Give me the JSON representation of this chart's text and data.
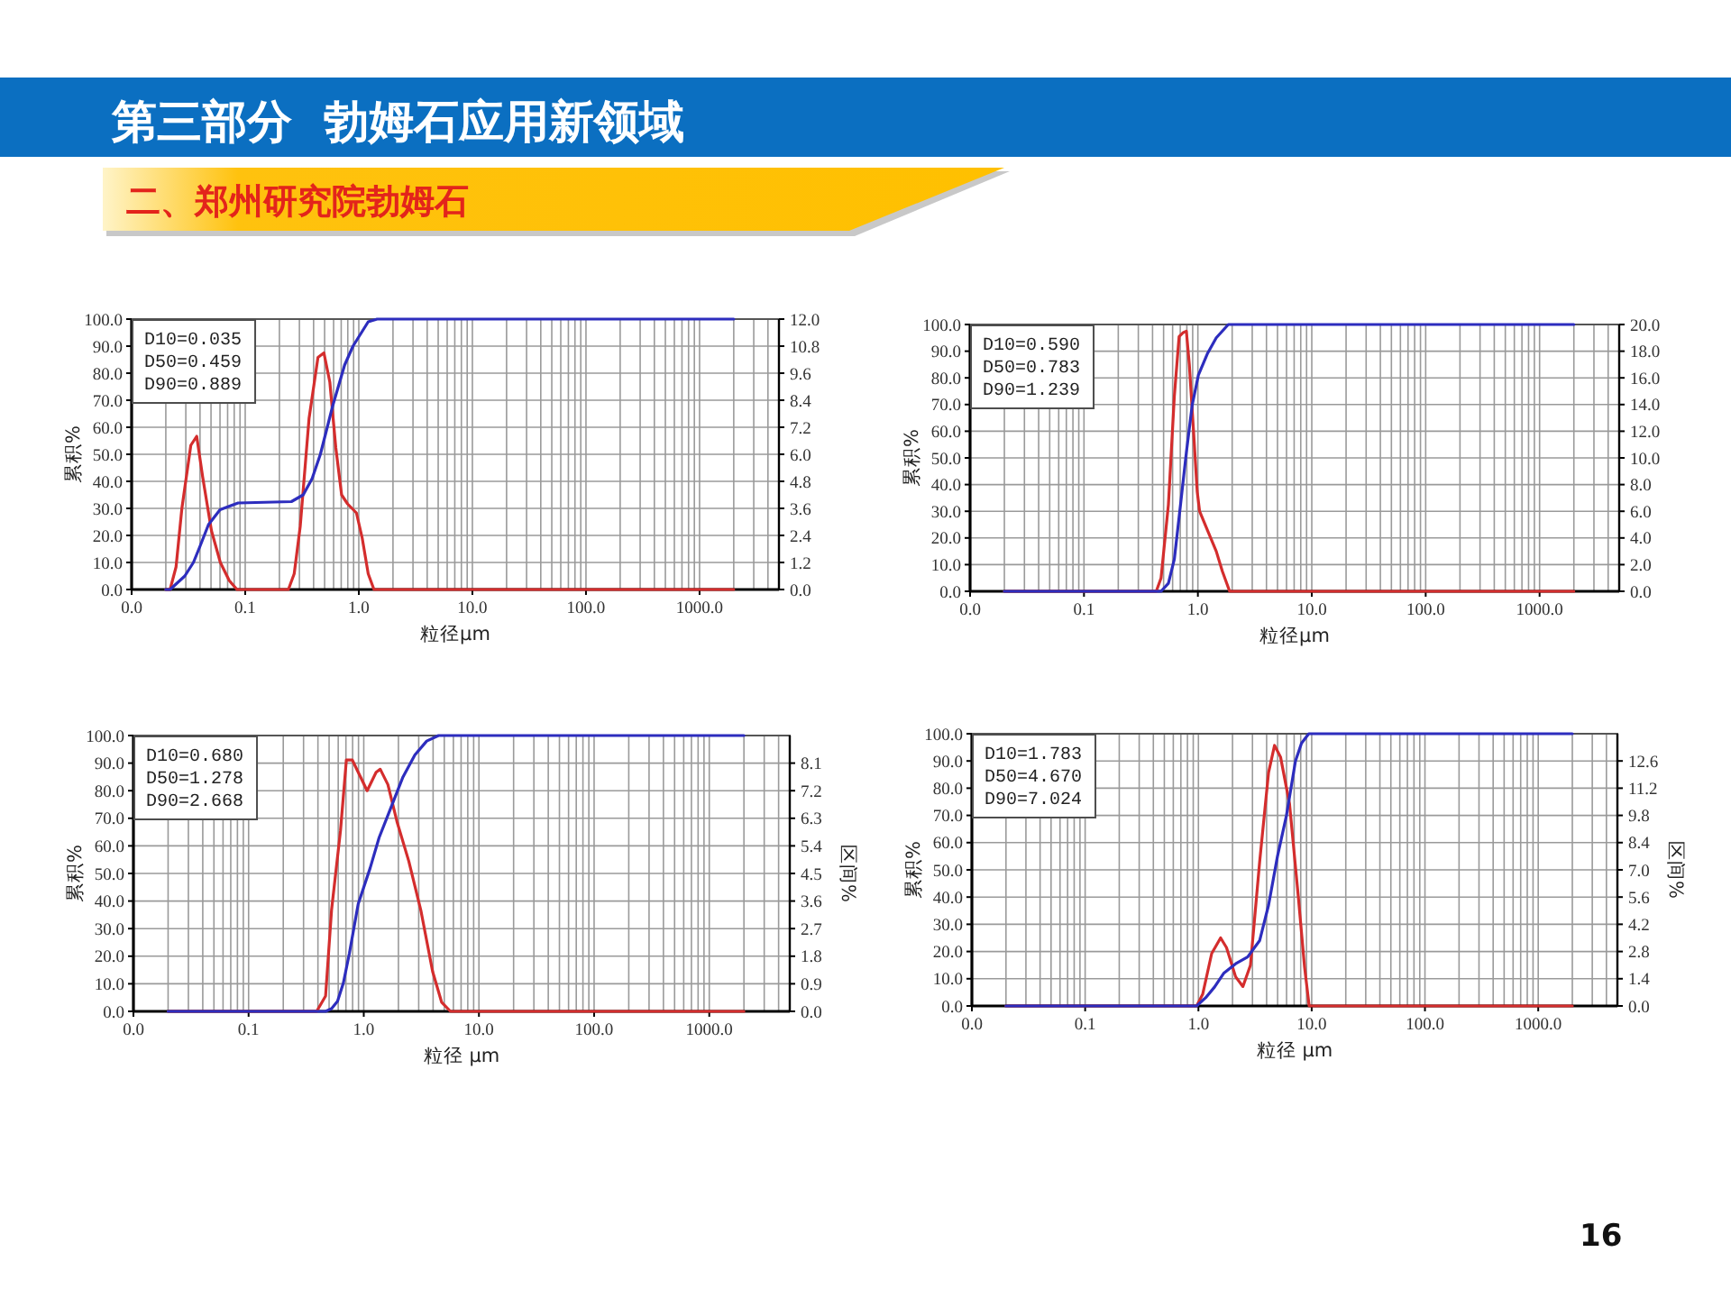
{
  "chart_data": [
    {
      "type": "other",
      "title": "第三部分  勃姆石应用新领域",
      "subtitle": "二、郑州研究院勃姆石",
      "annotations": [
        "16"
      ]
    },
    {
      "type": "line",
      "log": "x",
      "grid": true,
      "xlabel": "粒径μm",
      "ylabel": "累积%",
      "xlim": [
        0.01,
        5000
      ],
      "xticks": [
        {
          "value": 0.01,
          "label": "0.0"
        },
        {
          "value": 0.1,
          "label": "0.1"
        },
        {
          "value": 1,
          "label": "1.0"
        },
        {
          "value": 10,
          "label": "10.0"
        },
        {
          "value": 100,
          "label": "100.0"
        },
        {
          "value": 1000,
          "label": "1000.0"
        }
      ],
      "ylim": [
        0,
        100
      ],
      "yticks": [
        {
          "value": 0,
          "label": "0.0"
        },
        {
          "value": 10,
          "label": "10.0"
        },
        {
          "value": 20,
          "label": "20.0"
        },
        {
          "value": 30,
          "label": "30.0"
        },
        {
          "value": 40,
          "label": "40.0"
        },
        {
          "value": 50,
          "label": "50.0"
        },
        {
          "value": 60,
          "label": "60.0"
        },
        {
          "value": 70,
          "label": "70.0"
        },
        {
          "value": 80,
          "label": "80.0"
        },
        {
          "value": 90,
          "label": "90.0"
        },
        {
          "value": 100,
          "label": "100.0"
        }
      ],
      "y2lim": [
        0,
        12
      ],
      "y2ticks": [
        {
          "value": 0,
          "label": "0.0"
        },
        1.2,
        2.4,
        3.6,
        4.8,
        {
          "value": 6,
          "label": "6.0"
        },
        7.2,
        8.4,
        9.6,
        10.8,
        {
          "value": 12,
          "label": "12.0"
        }
      ],
      "annotations": [
        "D10=0.035",
        "D50=0.459",
        "D90=0.889"
      ],
      "series": [
        {
          "axis": "y2",
          "color": "#d42d2d",
          "x": [
            0.02,
            0.0218,
            0.0246,
            0.0277,
            0.0332,
            0.0374,
            0.0422,
            0.0505,
            0.0604,
            0.0723,
            0.0846,
            0.24,
            0.27,
            0.305,
            0.365,
            0.437,
            0.493,
            0.556,
            0.627,
            0.706,
            0.796,
            0.953,
            1.07,
            1.21,
            1.36,
            2000
          ],
          "values": [
            0,
            0,
            1.0,
            3.6,
            6.4,
            6.8,
            5.0,
            2.6,
            1.2,
            0.4,
            0,
            0,
            0.7,
            2.8,
            7.6,
            10.3,
            10.5,
            9.2,
            6.3,
            4.2,
            3.8,
            3.4,
            2.3,
            0.7,
            0,
            0
          ]
        },
        {
          "color": "#2d2dbe",
          "x": [
            0.02,
            0.0218,
            0.0294,
            0.035,
            0.04,
            0.0475,
            0.06,
            0.0866,
            0.255,
            0.324,
            0.388,
            0.459,
            0.59,
            0.75,
            0.889,
            1.21,
            1.45,
            2000
          ],
          "values": [
            0,
            0,
            5,
            10,
            16,
            24,
            29.5,
            32,
            32.5,
            35,
            41,
            50,
            68,
            83,
            90,
            99,
            100,
            100
          ]
        }
      ]
    },
    {
      "type": "line",
      "log": "x",
      "grid": true,
      "xlabel": "粒径μm",
      "ylabel": "累积%",
      "xlim": [
        0.01,
        5000
      ],
      "xticks": [
        {
          "value": 0.01,
          "label": "0.0"
        },
        {
          "value": 0.1,
          "label": "0.1"
        },
        {
          "value": 1,
          "label": "1.0"
        },
        {
          "value": 10,
          "label": "10.0"
        },
        {
          "value": 100,
          "label": "100.0"
        },
        {
          "value": 1000,
          "label": "1000.0"
        }
      ],
      "ylim": [
        0,
        100
      ],
      "yticks": [
        {
          "value": 0,
          "label": "0.0"
        },
        {
          "value": 10,
          "label": "10.0"
        },
        {
          "value": 20,
          "label": "20.0"
        },
        {
          "value": 30,
          "label": "30.0"
        },
        {
          "value": 40,
          "label": "40.0"
        },
        {
          "value": 50,
          "label": "50.0"
        },
        {
          "value": 60,
          "label": "60.0"
        },
        {
          "value": 70,
          "label": "70.0"
        },
        {
          "value": 80,
          "label": "80.0"
        },
        {
          "value": 90,
          "label": "90.0"
        },
        {
          "value": 100,
          "label": "100.0"
        }
      ],
      "y2lim": [
        0,
        20
      ],
      "y2ticks": [
        {
          "value": 0,
          "label": "0.0"
        },
        {
          "value": 2,
          "label": "2.0"
        },
        {
          "value": 4,
          "label": "4.0"
        },
        {
          "value": 6,
          "label": "6.0"
        },
        {
          "value": 8,
          "label": "8.0"
        },
        {
          "value": 10,
          "label": "10.0"
        },
        {
          "value": 12,
          "label": "12.0"
        },
        {
          "value": 14,
          "label": "14.0"
        },
        {
          "value": 16,
          "label": "16.0"
        },
        {
          "value": 18,
          "label": "18.0"
        },
        {
          "value": 20,
          "label": "20.0"
        }
      ],
      "annotations": [
        "D10=0.590",
        "D50=0.783",
        "D90=1.239"
      ],
      "series": [
        {
          "axis": "y2",
          "color": "#d42d2d",
          "x": [
            0.02,
            0.431,
            0.475,
            0.551,
            0.621,
            0.684,
            0.744,
            0.792,
            0.841,
            0.916,
            0.986,
            1.035,
            1.21,
            1.45,
            1.64,
            1.9,
            2000
          ],
          "values": [
            0,
            0,
            1.0,
            6.5,
            14.6,
            19.1,
            19.4,
            19.5,
            17.0,
            12.0,
            7.5,
            6.0,
            4.6,
            3.0,
            1.5,
            0,
            0
          ]
        },
        {
          "color": "#2d2dbe",
          "x": [
            0.02,
            0.475,
            0.551,
            0.621,
            0.702,
            0.792,
            0.893,
            1.01,
            1.21,
            1.45,
            1.85,
            2000
          ],
          "values": [
            0,
            0,
            3,
            12,
            32,
            52,
            70,
            81,
            89,
            95,
            100,
            100
          ]
        }
      ]
    },
    {
      "type": "line",
      "log": "x",
      "grid": true,
      "xlabel": "粒径 μm",
      "ylabel": "累积%",
      "y2label": "区间%",
      "xlim": [
        0.01,
        5000
      ],
      "xticks": [
        {
          "value": 0.01,
          "label": "0.0"
        },
        {
          "value": 0.1,
          "label": "0.1"
        },
        {
          "value": 1,
          "label": "1.0"
        },
        {
          "value": 10,
          "label": "10.0"
        },
        {
          "value": 100,
          "label": "100.0"
        },
        {
          "value": 1000,
          "label": "1000.0"
        }
      ],
      "ylim": [
        0,
        100
      ],
      "yticks": [
        {
          "value": 0,
          "label": "0.0"
        },
        {
          "value": 10,
          "label": "10.0"
        },
        {
          "value": 20,
          "label": "20.0"
        },
        {
          "value": 30,
          "label": "30.0"
        },
        {
          "value": 40,
          "label": "40.0"
        },
        {
          "value": 50,
          "label": "50.0"
        },
        {
          "value": 60,
          "label": "60.0"
        },
        {
          "value": 70,
          "label": "70.0"
        },
        {
          "value": 80,
          "label": "80.0"
        },
        {
          "value": 90,
          "label": "90.0"
        },
        {
          "value": 100,
          "label": "100.0"
        }
      ],
      "y2lim": [
        0,
        9
      ],
      "y2ticks": [
        {
          "value": 0,
          "label": "0.0"
        },
        0.9,
        1.8,
        2.7,
        3.6,
        4.5,
        5.4,
        6.3,
        7.2,
        8.1
      ],
      "annotations": [
        "D10=0.680",
        "D50=1.278",
        "D90=2.668"
      ],
      "series": [
        {
          "axis": "y2",
          "color": "#d42d2d",
          "x": [
            0.02,
            0.39,
            0.466,
            0.525,
            0.628,
            0.706,
            0.796,
            0.895,
            1.07,
            1.28,
            1.39,
            1.62,
            1.94,
            2.46,
            3.13,
            3.96,
            4.74,
            5.66,
            2000
          ],
          "values": [
            0,
            0,
            0.5,
            3.3,
            5.9,
            8.2,
            8.2,
            7.8,
            7.2,
            7.8,
            7.9,
            7.4,
            6.2,
            4.9,
            3.3,
            1.3,
            0.3,
            0,
            0
          ]
        },
        {
          "color": "#2d2dbe",
          "x": [
            0.02,
            0.466,
            0.525,
            0.592,
            0.665,
            0.75,
            0.895,
            1.137,
            1.359,
            1.725,
            2.19,
            2.78,
            3.52,
            4.46,
            2000
          ],
          "values": [
            0,
            0,
            1,
            3.7,
            10.3,
            21,
            39,
            52,
            63,
            74,
            85,
            93,
            98,
            100,
            100
          ]
        }
      ]
    },
    {
      "type": "line",
      "log": "x",
      "grid": true,
      "xlabel": "粒径 μm",
      "ylabel": "累积%",
      "y2label": "区间%",
      "xlim": [
        0.01,
        5000
      ],
      "xticks": [
        {
          "value": 0.01,
          "label": "0.0"
        },
        {
          "value": 0.1,
          "label": "0.1"
        },
        {
          "value": 1,
          "label": "1.0"
        },
        {
          "value": 10,
          "label": "10.0"
        },
        {
          "value": 100,
          "label": "100.0"
        },
        {
          "value": 1000,
          "label": "1000.0"
        }
      ],
      "ylim": [
        0,
        100
      ],
      "yticks": [
        {
          "value": 0,
          "label": "0.0"
        },
        {
          "value": 10,
          "label": "10.0"
        },
        {
          "value": 20,
          "label": "20.0"
        },
        {
          "value": 30,
          "label": "30.0"
        },
        {
          "value": 40,
          "label": "40.0"
        },
        {
          "value": 50,
          "label": "50.0"
        },
        {
          "value": 60,
          "label": "60.0"
        },
        {
          "value": 70,
          "label": "70.0"
        },
        {
          "value": 80,
          "label": "80.0"
        },
        {
          "value": 90,
          "label": "90.0"
        },
        {
          "value": 100,
          "label": "100.0"
        }
      ],
      "y2lim": [
        0,
        14
      ],
      "y2ticks": [
        {
          "value": 0,
          "label": "0.0"
        },
        1.4,
        2.8,
        4.2,
        5.6,
        {
          "value": 7,
          "label": "7.0"
        },
        8.4,
        9.8,
        11.2,
        12.6
      ],
      "annotations": [
        "D10=1.783",
        "D50=4.670",
        "D90=7.024"
      ],
      "series": [
        {
          "axis": "y2",
          "color": "#d42d2d",
          "x": [
            0.02,
            0.964,
            1.09,
            1.31,
            1.57,
            1.77,
            2.13,
            2.47,
            2.88,
            3.47,
            4.16,
            4.7,
            5.31,
            6.37,
            7.65,
            8.65,
            9.5,
            2000
          ],
          "values": [
            0,
            0,
            0.6,
            2.7,
            3.5,
            3.0,
            1.5,
            1.0,
            2.1,
            7.4,
            12.0,
            13.4,
            12.8,
            10.4,
            5.5,
            2.0,
            0,
            0
          ]
        },
        {
          "color": "#2d2dbe",
          "x": [
            0.02,
            0.964,
            1.157,
            1.39,
            1.67,
            2.13,
            2.72,
            3.47,
            4.16,
            4.99,
            5.99,
            7.19,
            8.13,
            9.42,
            2000
          ],
          "values": [
            0,
            0,
            3,
            7,
            12,
            15.5,
            18,
            24,
            37,
            55,
            70,
            90,
            96.5,
            100,
            100
          ]
        }
      ]
    }
  ]
}
